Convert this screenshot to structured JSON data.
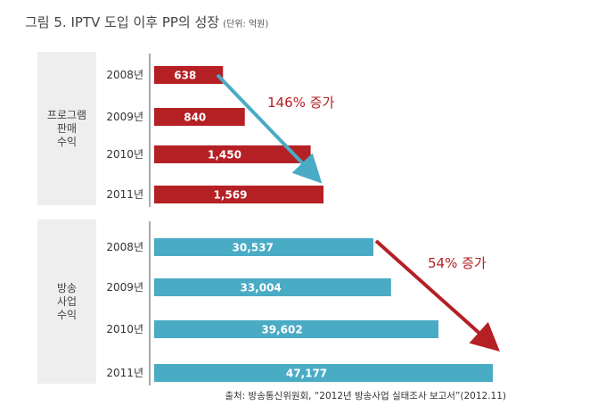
{
  "title": "그림 5. IPTV 도입 이후 PP의 성장",
  "unit": "(단위: 억원)",
  "source": "출처: 방송통신위원회, “2012년 방송사업 실태조사 보고서”(2012.11)",
  "colors": {
    "program_sales": "#b52025",
    "broadcast_revenue": "#4aabc5",
    "group_box": "#eeeeee",
    "annotation": "#b52025",
    "arrow_blue": "#4aabc5",
    "arrow_red": "#b52025"
  },
  "chart_data": [
    {
      "type": "bar",
      "orientation": "horizontal",
      "group_label": [
        "프로그램",
        "판매",
        "수익"
      ],
      "categories": [
        "2008년",
        "2009년",
        "2010년",
        "2011년"
      ],
      "values": [
        638,
        840,
        1450,
        1569
      ],
      "value_labels": [
        "638",
        "840",
        "1,450",
        "1,569"
      ],
      "annotation": "146% 증가",
      "color": "#b52025"
    },
    {
      "type": "bar",
      "orientation": "horizontal",
      "group_label": [
        "방송",
        "사업",
        "수익"
      ],
      "categories": [
        "2008년",
        "2009년",
        "2010년",
        "2011년"
      ],
      "values": [
        30537,
        33004,
        39602,
        47177
      ],
      "value_labels": [
        "30,537",
        "33,004",
        "39,602",
        "47,177"
      ],
      "annotation": "54% 증가",
      "color": "#4aabc5"
    }
  ]
}
